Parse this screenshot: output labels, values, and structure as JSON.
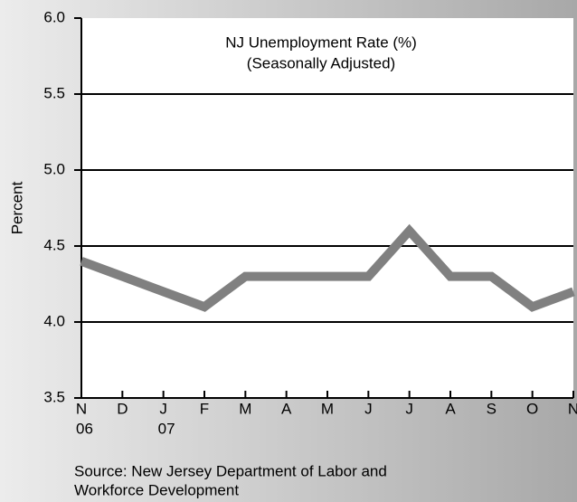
{
  "chart_data": {
    "type": "line",
    "title": "NJ Unemployment Rate (%)",
    "subtitle": "(Seasonally Adjusted)",
    "y_label": "Percent",
    "source": [
      "Source: New Jersey Department of Labor and",
      "Workforce Development"
    ],
    "categories": [
      "N",
      "D",
      "J",
      "F",
      "M",
      "A",
      "M",
      "J",
      "J",
      "A",
      "S",
      "O",
      "N"
    ],
    "year_labels": [
      "06",
      null,
      "07",
      null,
      null,
      null,
      null,
      null,
      null,
      null,
      null,
      null,
      null
    ],
    "values": [
      4.4,
      4.3,
      4.2,
      4.1,
      4.3,
      4.3,
      4.3,
      4.3,
      4.6,
      4.3,
      4.3,
      4.1,
      4.2
    ],
    "color": "#808080",
    "ylim": [
      3.5,
      6.0
    ],
    "yticks": [
      3.5,
      {
        "value": 4,
        "label": "4.0"
      },
      4.5,
      {
        "value": 5,
        "label": "5.0"
      },
      5.5,
      {
        "value": 6,
        "label": "6.0"
      }
    ],
    "grid": true
  }
}
